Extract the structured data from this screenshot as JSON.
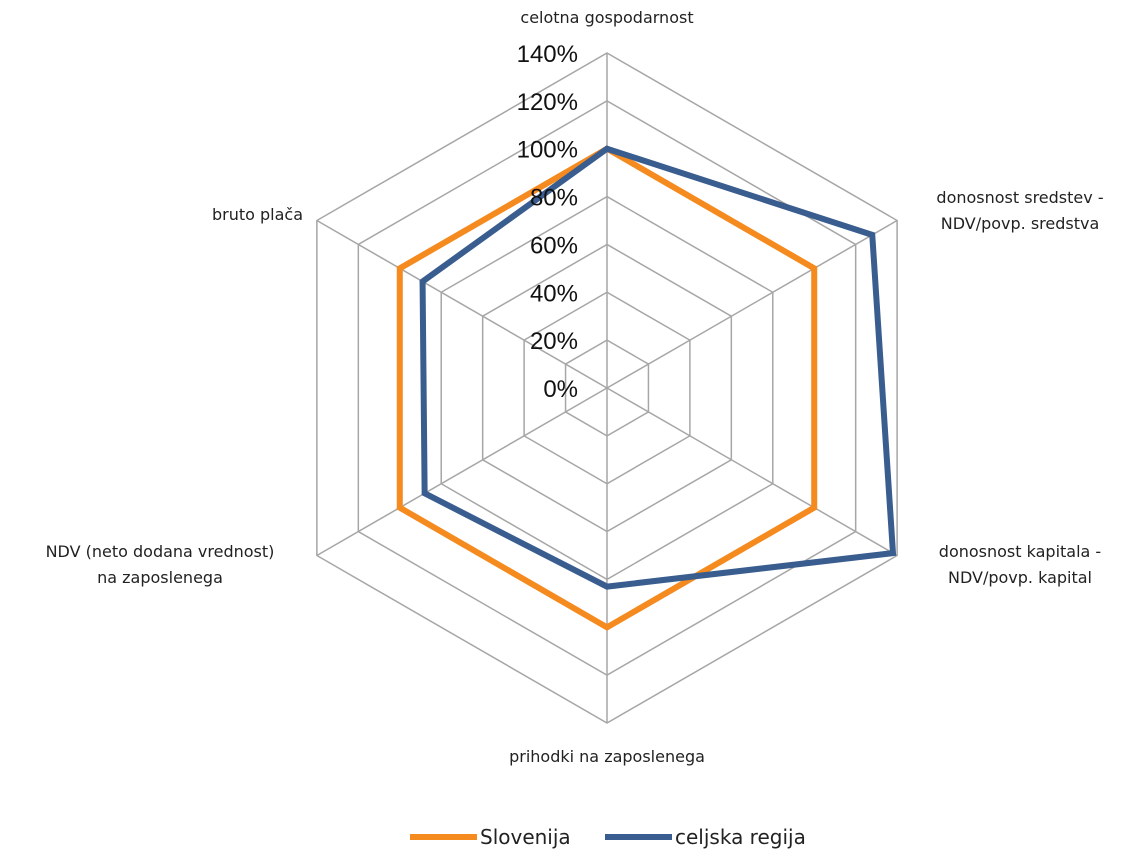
{
  "chart_data": {
    "type": "radar",
    "categories": [
      "celotna gospodarnost",
      "donosnost sredstev - NDV/povp. sredstva",
      "donosnost kapitala - NDV/povp. kapital",
      "prihodki na zaposlenega",
      "NDV (neto dodana vrednost) na zaposlenega",
      "bruto plača"
    ],
    "category_lines": [
      [
        "celotna gospodarnost"
      ],
      [
        "donosnost sredstev -",
        "NDV/povp. sredstva"
      ],
      [
        "donosnost kapitala -",
        "NDV/povp. kapital"
      ],
      [
        "prihodki na zaposlenega"
      ],
      [
        "NDV (neto dodana vrednost)",
        "na zaposlenega"
      ],
      [
        "bruto plača"
      ]
    ],
    "ticks": [
      "0%",
      "20%",
      "40%",
      "60%",
      "80%",
      "100%",
      "120%",
      "140%"
    ],
    "range": [
      0,
      140
    ],
    "series": [
      {
        "name": "Slovenija",
        "color": "#F58A1F",
        "values": [
          100,
          100,
          100,
          100,
          100,
          100
        ]
      },
      {
        "name": "celjska regija",
        "color": "#3A5D8F",
        "values": [
          100,
          128,
          138,
          83,
          88,
          89
        ]
      }
    ],
    "grid_color": "#A6A6A6",
    "legend_position": "bottom"
  }
}
